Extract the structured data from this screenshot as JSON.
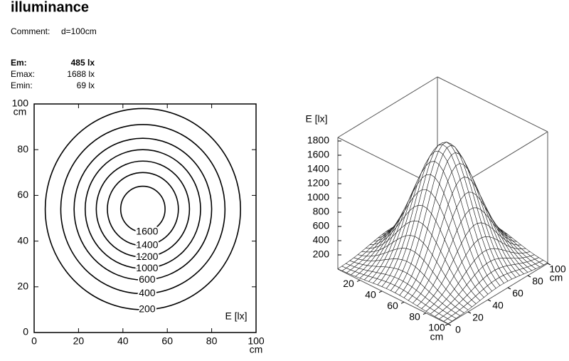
{
  "header": {
    "title": "illuminance",
    "comment_label": "Comment:",
    "comment": "d=100cm",
    "stats": [
      {
        "name": "Em:",
        "value": 485,
        "label": "485 lx"
      },
      {
        "name": "Emax:",
        "value": 1688,
        "label": "1688 lx"
      },
      {
        "name": "Emin:",
        "value": 69,
        "label": "69 lx"
      }
    ]
  },
  "chart_data": [
    {
      "type": "contour",
      "annotation": "E [lx]",
      "x_unit": "cm",
      "y_unit": "cm",
      "xlim": [
        0,
        100
      ],
      "ylim": [
        0,
        100
      ],
      "xticks": [
        0,
        20,
        40,
        60,
        80,
        100
      ],
      "yticks": [
        0,
        20,
        40,
        60,
        80,
        100
      ],
      "center": [
        49,
        54
      ],
      "color": "#000000",
      "contours": [
        {
          "level": 200,
          "radius": 44
        },
        {
          "level": 400,
          "radius": 37
        },
        {
          "level": 600,
          "radius": 31
        },
        {
          "level": 1000,
          "radius": 26
        },
        {
          "level": 1200,
          "radius": 21
        },
        {
          "level": 1400,
          "radius": 16
        },
        {
          "level": 1600,
          "radius": 10
        }
      ]
    },
    {
      "type": "surface3d",
      "zlabel": "E [lx]",
      "x_unit": "cm",
      "y_unit": "cm",
      "xlim": [
        0,
        100
      ],
      "ylim": [
        0,
        100
      ],
      "zlim": [
        0,
        1850
      ],
      "xticks": [
        20,
        40,
        60,
        80,
        100
      ],
      "yticks": [
        0,
        20,
        40,
        60,
        80,
        100
      ],
      "zticks": [
        200,
        400,
        600,
        800,
        1000,
        1200,
        1400,
        1600,
        1800
      ],
      "color": "#222222"
    }
  ]
}
